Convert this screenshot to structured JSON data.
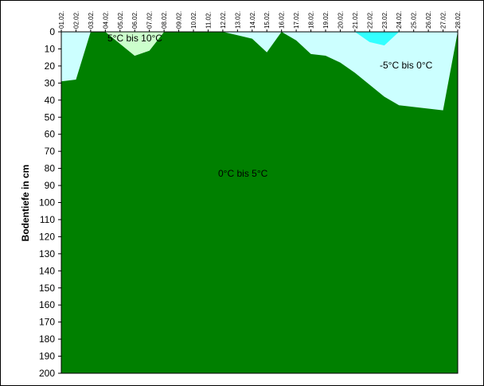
{
  "chart_data": {
    "type": "area",
    "y_label": "Bodentiefe in cm",
    "categories": [
      "01.02.",
      "02.02.",
      "03.02.",
      "04.02.",
      "05.02.",
      "06.02.",
      "07.02.",
      "08.02.",
      "09.02.",
      "10.02.",
      "11.02.",
      "12.02.",
      "13.02.",
      "14.02.",
      "15.02.",
      "16.02.",
      "17.02.",
      "18.02.",
      "19.02.",
      "20.02.",
      "21.02.",
      "22.02.",
      "23.02.",
      "24.02.",
      "25.02.",
      "26.02.",
      "27.02.",
      "28.02."
    ],
    "plot_color": "#008000",
    "series": [
      {
        "name": "-5°C bis 0°C",
        "color": "#ccffff",
        "values": [
          29,
          28,
          0,
          0,
          7,
          14,
          11,
          0,
          0,
          0,
          0,
          0,
          2,
          4,
          12,
          0,
          5,
          13,
          14,
          18,
          24,
          31,
          38,
          43,
          44,
          45,
          46,
          0
        ]
      },
      {
        "name": "5°C bis 10°C",
        "color": "#ccffcc",
        "values": [
          0,
          0,
          0,
          0,
          7,
          14,
          11,
          0,
          0,
          0,
          0,
          0,
          0,
          0,
          0,
          0,
          0,
          0,
          0,
          0,
          0,
          0,
          0,
          0,
          0,
          0,
          0,
          0
        ]
      },
      {
        "color": "#33ffff",
        "values": [
          0,
          0,
          0,
          0,
          0,
          0,
          0,
          0,
          0,
          0,
          0,
          0,
          0,
          0,
          0,
          0,
          0,
          0,
          0,
          0,
          0,
          6,
          8,
          0,
          0,
          0,
          0,
          0
        ]
      }
    ],
    "annotations": [
      "0°C bis 5°C"
    ],
    "ylim": [
      0,
      200
    ],
    "yticks": [
      0,
      10,
      20,
      30,
      40,
      50,
      60,
      70,
      80,
      90,
      100,
      110,
      120,
      130,
      140,
      150,
      160,
      170,
      180,
      190,
      200
    ]
  }
}
